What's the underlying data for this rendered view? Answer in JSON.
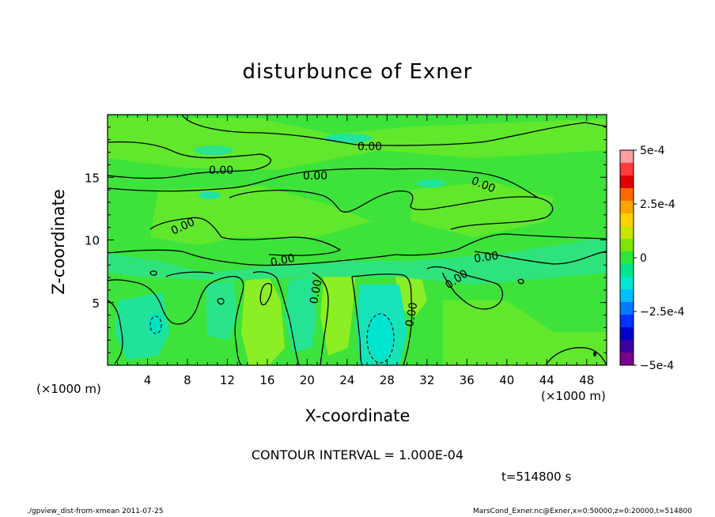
{
  "chart_data": {
    "type": "heatmap",
    "title": "disturbunce of Exner",
    "xlabel": "X-coordinate",
    "ylabel": "Z-coordinate",
    "x_unit_label": "(×1000 m)",
    "y_unit_label": "(×1000 m)",
    "xlim": [
      0,
      50
    ],
    "ylim": [
      0,
      20
    ],
    "x_ticks": [
      "4",
      "8",
      "12",
      "16",
      "20",
      "24",
      "28",
      "32",
      "36",
      "40",
      "44",
      "48"
    ],
    "x_tick_values": [
      4,
      8,
      12,
      16,
      20,
      24,
      28,
      32,
      36,
      40,
      44,
      48
    ],
    "y_ticks": [
      "5",
      "10",
      "15"
    ],
    "y_tick_values": [
      5,
      10,
      15
    ],
    "colorbar": {
      "labels": [
        "5e-4",
        "2.5e-4",
        "0",
        "−2.5e-4",
        "−5e-4"
      ],
      "levels": [
        0.0005,
        0.00025,
        0,
        -0.00025,
        -0.0005
      ],
      "colors": [
        "#ff9da0",
        "#ff3a3a",
        "#e00000",
        "#ff6a00",
        "#ffa500",
        "#ffd200",
        "#c8e600",
        "#7ce600",
        "#2de63a",
        "#00e68c",
        "#00e6d0",
        "#00bfff",
        "#007aff",
        "#0033ff",
        "#0000c8",
        "#3a00a0",
        "#7a0090"
      ]
    },
    "contour_labels": [
      "0.00",
      "0.00",
      "0.00",
      "0.00",
      "0.00",
      "0.00",
      "0.00",
      "0.00",
      "0.00",
      "0.00"
    ],
    "contour_interval_text": "CONTOUR INTERVAL = 1.000E-04",
    "time_text": "t=514800 s",
    "footer_left": "./gpview_dist-from-xmean  2011-07-25",
    "footer_right": "MarsCond_Exner.nc@Exner,x=0:50000,z=0:20000,t=514800"
  }
}
